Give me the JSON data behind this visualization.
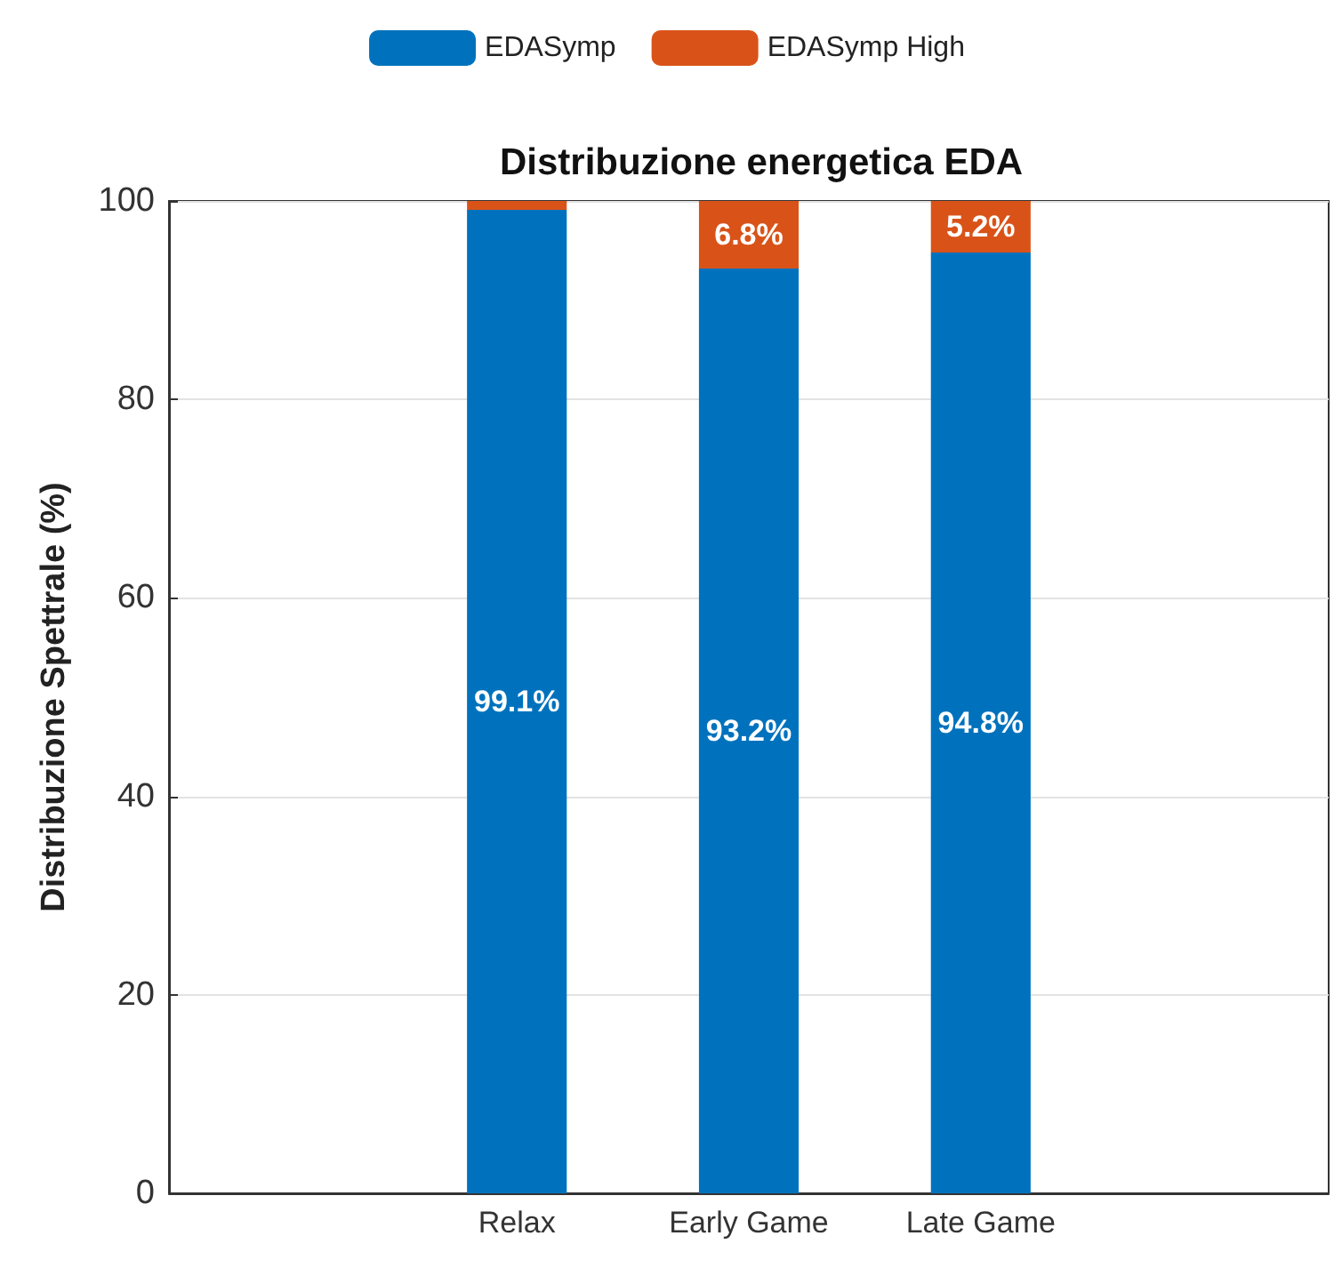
{
  "chart_data": {
    "type": "bar",
    "title": "Distribuzione energetica EDA",
    "ylabel": "Distribuzione Spettrale (%)",
    "categories": [
      "Relax",
      "Early Game",
      "Late Game"
    ],
    "series": [
      {
        "name": "EDASymp",
        "color": "#0072bd",
        "values": [
          99.1,
          93.2,
          94.8
        ],
        "value_labels": [
          "99.1%",
          "93.2%",
          "94.8%"
        ]
      },
      {
        "name": "EDASymp High",
        "color": "#d95319",
        "values": [
          0.9,
          6.8,
          5.2
        ],
        "value_labels": [
          null,
          "6.8%",
          "5.2%"
        ]
      }
    ],
    "stacked": true,
    "ylim": [
      0,
      100
    ],
    "yticks": [
      0,
      20,
      40,
      60,
      80,
      100
    ],
    "grid": "y",
    "legend": "top"
  }
}
